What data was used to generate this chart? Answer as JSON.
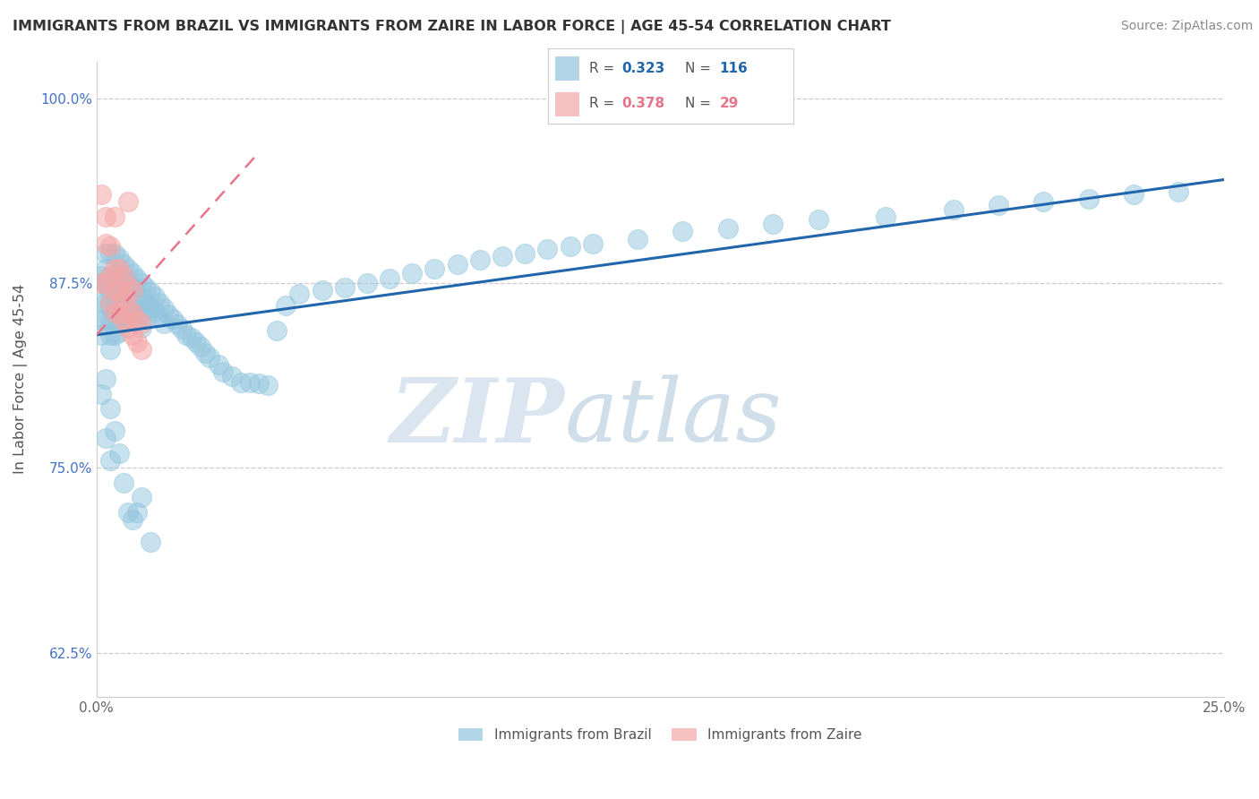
{
  "title": "IMMIGRANTS FROM BRAZIL VS IMMIGRANTS FROM ZAIRE IN LABOR FORCE | AGE 45-54 CORRELATION CHART",
  "source": "Source: ZipAtlas.com",
  "ylabel": "In Labor Force | Age 45-54",
  "x_ticks": [
    0.0,
    0.05,
    0.1,
    0.15,
    0.2,
    0.25
  ],
  "x_tick_labels": [
    "0.0%",
    "",
    "",
    "",
    "",
    "25.0%"
  ],
  "y_ticks": [
    0.625,
    0.75,
    0.875,
    1.0
  ],
  "y_tick_labels": [
    "62.5%",
    "75.0%",
    "87.5%",
    "100.0%"
  ],
  "xlim": [
    0.0,
    0.25
  ],
  "ylim": [
    0.595,
    1.025
  ],
  "legend_brazil_r": "0.323",
  "legend_brazil_n": "116",
  "legend_zaire_r": "0.378",
  "legend_zaire_n": "29",
  "brazil_color": "#92c5de",
  "zaire_color": "#f4a6a6",
  "brazil_line_color": "#2166ac",
  "zaire_line_color": "#e8748a",
  "watermark_zip": "ZIP",
  "watermark_atlas": "atlas",
  "brazil_scatter_x": [
    0.001,
    0.001,
    0.001,
    0.001,
    0.002,
    0.002,
    0.002,
    0.002,
    0.002,
    0.002,
    0.003,
    0.003,
    0.003,
    0.003,
    0.003,
    0.003,
    0.003,
    0.004,
    0.004,
    0.004,
    0.004,
    0.004,
    0.004,
    0.005,
    0.005,
    0.005,
    0.005,
    0.005,
    0.005,
    0.006,
    0.006,
    0.006,
    0.006,
    0.006,
    0.007,
    0.007,
    0.007,
    0.007,
    0.008,
    0.008,
    0.008,
    0.008,
    0.009,
    0.009,
    0.009,
    0.01,
    0.01,
    0.01,
    0.01,
    0.011,
    0.011,
    0.011,
    0.012,
    0.012,
    0.013,
    0.013,
    0.014,
    0.014,
    0.015,
    0.015,
    0.016,
    0.017,
    0.018,
    0.019,
    0.02,
    0.021,
    0.022,
    0.023,
    0.024,
    0.025,
    0.027,
    0.028,
    0.03,
    0.032,
    0.034,
    0.036,
    0.038,
    0.04,
    0.042,
    0.045,
    0.05,
    0.055,
    0.06,
    0.065,
    0.07,
    0.075,
    0.08,
    0.085,
    0.09,
    0.095,
    0.1,
    0.105,
    0.11,
    0.12,
    0.13,
    0.14,
    0.15,
    0.16,
    0.175,
    0.19,
    0.2,
    0.21,
    0.22,
    0.23,
    0.24,
    0.001,
    0.001,
    0.002,
    0.002,
    0.003,
    0.003,
    0.004,
    0.005,
    0.006,
    0.007,
    0.008,
    0.009,
    0.01,
    0.012
  ],
  "brazil_scatter_y": [
    0.88,
    0.875,
    0.862,
    0.85,
    0.895,
    0.885,
    0.875,
    0.862,
    0.875,
    0.85,
    0.895,
    0.88,
    0.87,
    0.86,
    0.85,
    0.84,
    0.83,
    0.895,
    0.88,
    0.87,
    0.86,
    0.852,
    0.84,
    0.892,
    0.882,
    0.872,
    0.862,
    0.852,
    0.842,
    0.888,
    0.878,
    0.868,
    0.858,
    0.848,
    0.885,
    0.875,
    0.865,
    0.855,
    0.882,
    0.872,
    0.862,
    0.85,
    0.878,
    0.868,
    0.858,
    0.875,
    0.865,
    0.855,
    0.845,
    0.872,
    0.862,
    0.852,
    0.869,
    0.858,
    0.866,
    0.856,
    0.862,
    0.852,
    0.858,
    0.848,
    0.854,
    0.851,
    0.847,
    0.844,
    0.84,
    0.838,
    0.835,
    0.832,
    0.828,
    0.825,
    0.82,
    0.815,
    0.812,
    0.808,
    0.808,
    0.807,
    0.806,
    0.843,
    0.86,
    0.868,
    0.87,
    0.872,
    0.875,
    0.878,
    0.882,
    0.885,
    0.888,
    0.891,
    0.893,
    0.895,
    0.898,
    0.9,
    0.902,
    0.905,
    0.91,
    0.912,
    0.915,
    0.918,
    0.92,
    0.925,
    0.928,
    0.93,
    0.932,
    0.935,
    0.937,
    0.84,
    0.8,
    0.81,
    0.77,
    0.79,
    0.755,
    0.775,
    0.76,
    0.74,
    0.72,
    0.715,
    0.72,
    0.73,
    0.7
  ],
  "zaire_scatter_x": [
    0.001,
    0.001,
    0.002,
    0.002,
    0.002,
    0.003,
    0.003,
    0.003,
    0.004,
    0.004,
    0.004,
    0.004,
    0.005,
    0.005,
    0.005,
    0.006,
    0.006,
    0.006,
    0.007,
    0.007,
    0.007,
    0.007,
    0.008,
    0.008,
    0.008,
    0.009,
    0.009,
    0.01,
    0.01
  ],
  "zaire_scatter_y": [
    0.875,
    0.935,
    0.875,
    0.902,
    0.92,
    0.862,
    0.88,
    0.9,
    0.855,
    0.87,
    0.885,
    0.92,
    0.855,
    0.87,
    0.885,
    0.85,
    0.865,
    0.88,
    0.845,
    0.858,
    0.873,
    0.93,
    0.84,
    0.855,
    0.87,
    0.835,
    0.85,
    0.83,
    0.848
  ],
  "brazil_trend_x0": 0.0,
  "brazil_trend_y0": 0.84,
  "brazil_trend_x1": 0.25,
  "brazil_trend_y1": 0.945,
  "zaire_trend_x0": 0.0,
  "zaire_trend_y0": 0.84,
  "zaire_trend_x1": 0.035,
  "zaire_trend_y1": 0.96
}
